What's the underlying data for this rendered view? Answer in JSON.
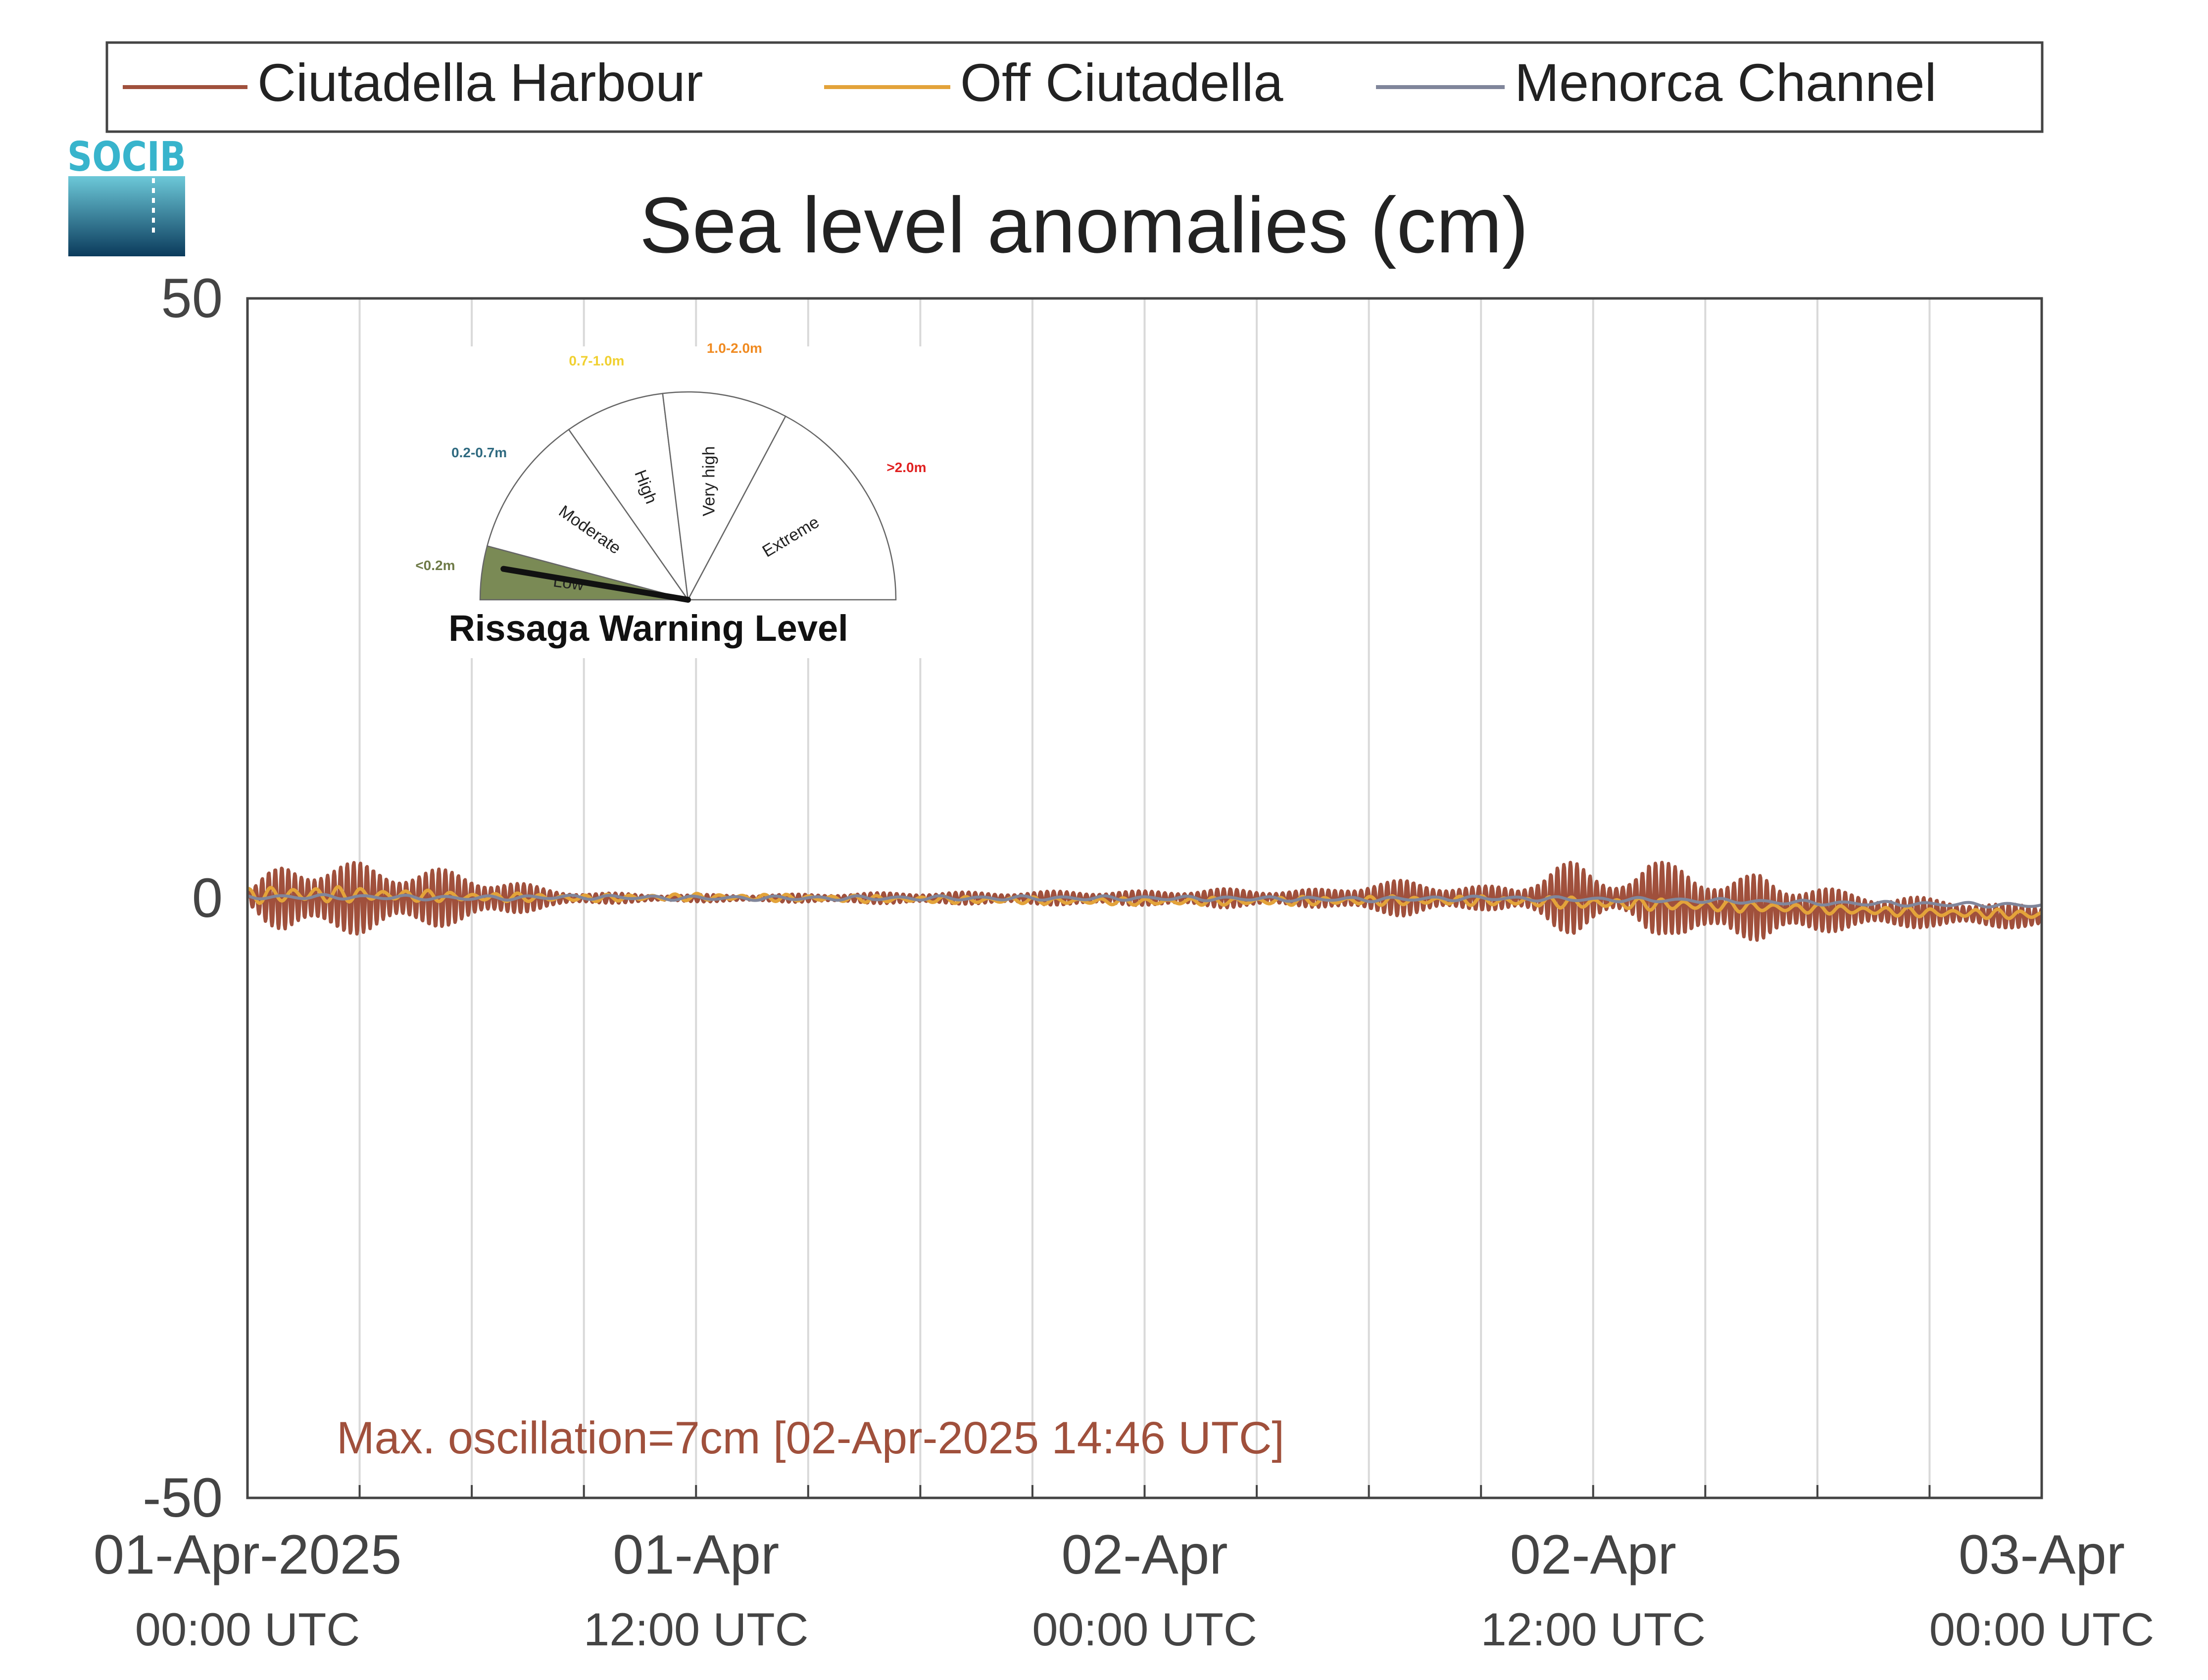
{
  "chart_data": {
    "type": "line",
    "title": "Sea level anomalies (cm)",
    "xlabel": "",
    "ylabel": "",
    "ylim": [
      -50,
      50
    ],
    "yticks": [
      50,
      0,
      -50
    ],
    "x_range": [
      "2025-04-01T00:00Z",
      "2025-04-03T00:00Z"
    ],
    "x_gridlines_hours": [
      0,
      3,
      6,
      9,
      12,
      15,
      18,
      21,
      24,
      27,
      30,
      33,
      36,
      39,
      42,
      45,
      48
    ],
    "x_tick_labels": [
      {
        "hour": 0,
        "date": "01-Apr-2025",
        "time": "00:00 UTC"
      },
      {
        "hour": 12,
        "date": "01-Apr",
        "time": "12:00 UTC"
      },
      {
        "hour": 24,
        "date": "02-Apr",
        "time": "00:00 UTC"
      },
      {
        "hour": 36,
        "date": "02-Apr",
        "time": "12:00 UTC"
      },
      {
        "hour": 48,
        "date": "03-Apr",
        "time": "00:00 UTC"
      }
    ],
    "grid": "vertical",
    "legend_position": "top",
    "series": [
      {
        "name": "Ciutadella Harbour",
        "color": "#a0503c",
        "stroke_weight": "thick",
        "hours": [
          0,
          0.5,
          1,
          2,
          3,
          4,
          5,
          6,
          7,
          8,
          9,
          10,
          11,
          12,
          14,
          16,
          18,
          20,
          22,
          24,
          26,
          28,
          29,
          30,
          31,
          32,
          33,
          34,
          34.5,
          35,
          35.5,
          36,
          36.5,
          37,
          37.5,
          38,
          38.5,
          39,
          39.5,
          40,
          40.5,
          41,
          42,
          43,
          44,
          45,
          46,
          47,
          48
        ],
        "amplitude_cm": [
          0.5,
          2.0,
          3.0,
          3.0,
          3.0,
          2.5,
          2.5,
          2.0,
          1.5,
          0.8,
          0.5,
          0.4,
          0.3,
          0.3,
          0.3,
          0.4,
          0.5,
          0.5,
          0.6,
          0.6,
          0.8,
          0.7,
          0.8,
          1.4,
          1.5,
          1.2,
          1.0,
          1.0,
          2.0,
          3.0,
          3.0,
          2.0,
          1.5,
          2.0,
          3.0,
          3.0,
          3.5,
          3.0,
          2.0,
          2.5,
          3.0,
          2.5,
          2.0,
          1.5,
          1.5,
          1.2,
          1.2,
          1.0,
          1.0
        ],
        "mean_cm": [
          0,
          0,
          0,
          0,
          0,
          0,
          0,
          0,
          0,
          0,
          0,
          0,
          0,
          0,
          0,
          0,
          0,
          0,
          0,
          0,
          0,
          0,
          0,
          0,
          0,
          0,
          0,
          0,
          0,
          0,
          0,
          0,
          0,
          0,
          0,
          0,
          -0.5,
          -0.7,
          -0.7,
          -0.7,
          -0.8,
          -0.9,
          -1.0,
          -1.0,
          -1.2,
          -1.2,
          -1.3,
          -1.5,
          -1.5
        ]
      },
      {
        "name": "Off Ciutadella",
        "color": "#e3a33a",
        "stroke_weight": "medium",
        "hours": [
          0,
          1,
          3,
          6,
          9,
          12,
          18,
          24,
          30,
          33,
          36,
          39,
          42,
          45,
          48
        ],
        "mean_cm": [
          0.2,
          0.3,
          0.3,
          0.1,
          0.0,
          0.1,
          -0.1,
          -0.3,
          -0.2,
          -0.2,
          -0.4,
          -0.6,
          -0.9,
          -1.2,
          -1.4
        ],
        "amplitude_cm": [
          0.6,
          0.8,
          0.6,
          0.4,
          0.3,
          0.3,
          0.3,
          0.3,
          0.4,
          0.4,
          0.5,
          0.5,
          0.4,
          0.4,
          0.4
        ]
      },
      {
        "name": "Menorca Channel",
        "color": "#80869b",
        "stroke_weight": "medium",
        "hours": [
          0,
          3,
          6,
          9,
          12,
          18,
          24,
          30,
          33,
          36,
          39,
          42,
          45,
          48
        ],
        "mean_cm": [
          0.1,
          0.1,
          0.0,
          0.1,
          0.0,
          0.0,
          0.0,
          -0.1,
          0.0,
          -0.1,
          -0.2,
          -0.4,
          -0.5,
          -0.6
        ],
        "amplitude_cm": [
          0.2,
          0.2,
          0.2,
          0.2,
          0.2,
          0.2,
          0.2,
          0.2,
          0.2,
          0.2,
          0.2,
          0.2,
          0.2,
          0.2
        ]
      }
    ],
    "annotation": {
      "text": "Max. oscillation=7cm [02-Apr-2025 14:46 UTC]",
      "color": "#a0503c"
    },
    "inset_gauge": {
      "title": "Rissaga Warning Level",
      "current_level": "Low",
      "sectors": [
        {
          "name": "Low",
          "range": "<0.2m",
          "range_color": "#6e7a47",
          "fill": "#7a8a55",
          "active": true
        },
        {
          "name": "Moderate",
          "range": "0.2-0.7m",
          "range_color": "#2f6a80",
          "fill": "#ffffff",
          "active": false
        },
        {
          "name": "High",
          "range": "0.7-1.0m",
          "range_color": "#f0d030",
          "fill": "#ffffff",
          "active": false
        },
        {
          "name": "Very high",
          "range": "1.0-2.0m",
          "range_color": "#f08a20",
          "fill": "#ffffff",
          "active": false
        },
        {
          "name": "Extreme",
          "range": ">2.0m",
          "range_color": "#e02020",
          "fill": "#ffffff",
          "active": false
        }
      ]
    }
  },
  "logo": {
    "text": "SOCIB",
    "top_color": "#38b4cc",
    "bottom_color": "#0b3b5c"
  }
}
